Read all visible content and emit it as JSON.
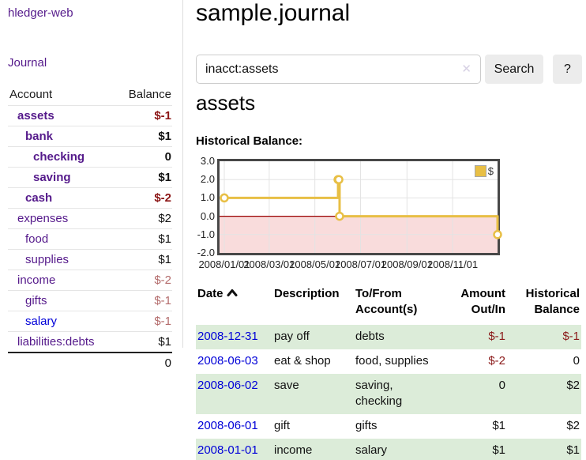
{
  "app": {
    "title": "hledger-web"
  },
  "colors": {
    "link_purple": "#551a8b",
    "link_blue": "#0000d8",
    "negative_strong": "#8b1414",
    "negative_muted": "#b36b6b",
    "table_stripe_green": "#dcecd9",
    "chart_line_gold": "#e8bf45",
    "chart_negative_pink": "#f9dcdc",
    "chart_zero_line": "#990000",
    "button_gray": "#ececec"
  },
  "sidebar": {
    "journal_link": "Journal",
    "columns": {
      "account": "Account",
      "balance": "Balance"
    },
    "accounts": [
      {
        "name": "assets",
        "balance": "$-1",
        "level": 1,
        "bold": true,
        "neg": "strong"
      },
      {
        "name": "bank",
        "balance": "$1",
        "level": 2,
        "bold": true,
        "neg": null
      },
      {
        "name": "checking",
        "balance": "0",
        "level": 3,
        "bold": true,
        "neg": null
      },
      {
        "name": "saving",
        "balance": "$1",
        "level": 3,
        "bold": true,
        "neg": null
      },
      {
        "name": "cash",
        "balance": "$-2",
        "level": 2,
        "bold": true,
        "neg": "strong"
      },
      {
        "name": "expenses",
        "balance": "$2",
        "level": 1,
        "bold": false,
        "neg": null
      },
      {
        "name": "food",
        "balance": "$1",
        "level": 2,
        "bold": false,
        "neg": null
      },
      {
        "name": "supplies",
        "balance": "$1",
        "level": 2,
        "bold": false,
        "neg": null
      },
      {
        "name": "income",
        "balance": "$-2",
        "level": 1,
        "bold": false,
        "neg": "muted"
      },
      {
        "name": "gifts",
        "balance": "$-1",
        "level": 2,
        "bold": false,
        "neg": "muted"
      },
      {
        "name": "salary",
        "balance": "$-1",
        "level": 2,
        "bold": false,
        "neg": "muted",
        "link": "unvisited"
      },
      {
        "name": "liabilities:debts",
        "balance": "$1",
        "level": 1,
        "bold": false,
        "neg": null
      }
    ],
    "total": "0"
  },
  "main": {
    "title": "sample.journal",
    "search": {
      "value": "inacct:assets",
      "clear_icon": "✕",
      "button_label": "Search",
      "help_label": "?"
    },
    "account_heading": "assets",
    "chart_label": "Historical Balance:"
  },
  "chart_data": {
    "type": "line",
    "step": true,
    "title": "Historical Balance:",
    "series": [
      {
        "name": "$",
        "points": [
          [
            "2008-01-01",
            1
          ],
          [
            "2008-06-01",
            2
          ],
          [
            "2008-06-02",
            2
          ],
          [
            "2008-06-03",
            0
          ],
          [
            "2008-12-31",
            -1
          ]
        ]
      }
    ],
    "ylim": [
      -2,
      3
    ],
    "yticks": [
      "3.0",
      "2.0",
      "1.0",
      "0.0",
      "-1.0",
      "-2.0"
    ],
    "xrange": [
      "2008-01-01",
      "2008-12-31"
    ],
    "xticks": [
      {
        "date": "2008-01-01",
        "label": "2008/01/01"
      },
      {
        "date": "2008-03-01",
        "label": "2008/03/01"
      },
      {
        "date": "2008-05-01",
        "label": "2008/05/01"
      },
      {
        "date": "2008-07-01",
        "label": "2008/07/01"
      },
      {
        "date": "2008-09-01",
        "label": "2008/09/01"
      },
      {
        "date": "2008-11-01",
        "label": "2008/11/01"
      }
    ],
    "grid": true,
    "negative_region_shaded": true,
    "legend": {
      "label": "$",
      "position": "top-right"
    }
  },
  "register": {
    "headers": [
      "Date",
      "Description",
      "To/From Account(s)",
      "Amount Out/In",
      "Historical Balance"
    ],
    "sort": {
      "column": "Date",
      "direction": "asc"
    },
    "rows": [
      {
        "date": "2008-12-31",
        "description": "pay off",
        "accounts": "debts",
        "amount": "$-1",
        "balance": "$-1"
      },
      {
        "date": "2008-06-03",
        "description": "eat & shop",
        "accounts": "food, supplies",
        "amount": "$-2",
        "balance": "0"
      },
      {
        "date": "2008-06-02",
        "description": "save",
        "accounts": "saving, checking",
        "amount": "0",
        "balance": "$2"
      },
      {
        "date": "2008-06-01",
        "description": "gift",
        "accounts": "gifts",
        "amount": "$1",
        "balance": "$2"
      },
      {
        "date": "2008-01-01",
        "description": "income",
        "accounts": "salary",
        "amount": "$1",
        "balance": "$1"
      }
    ]
  }
}
